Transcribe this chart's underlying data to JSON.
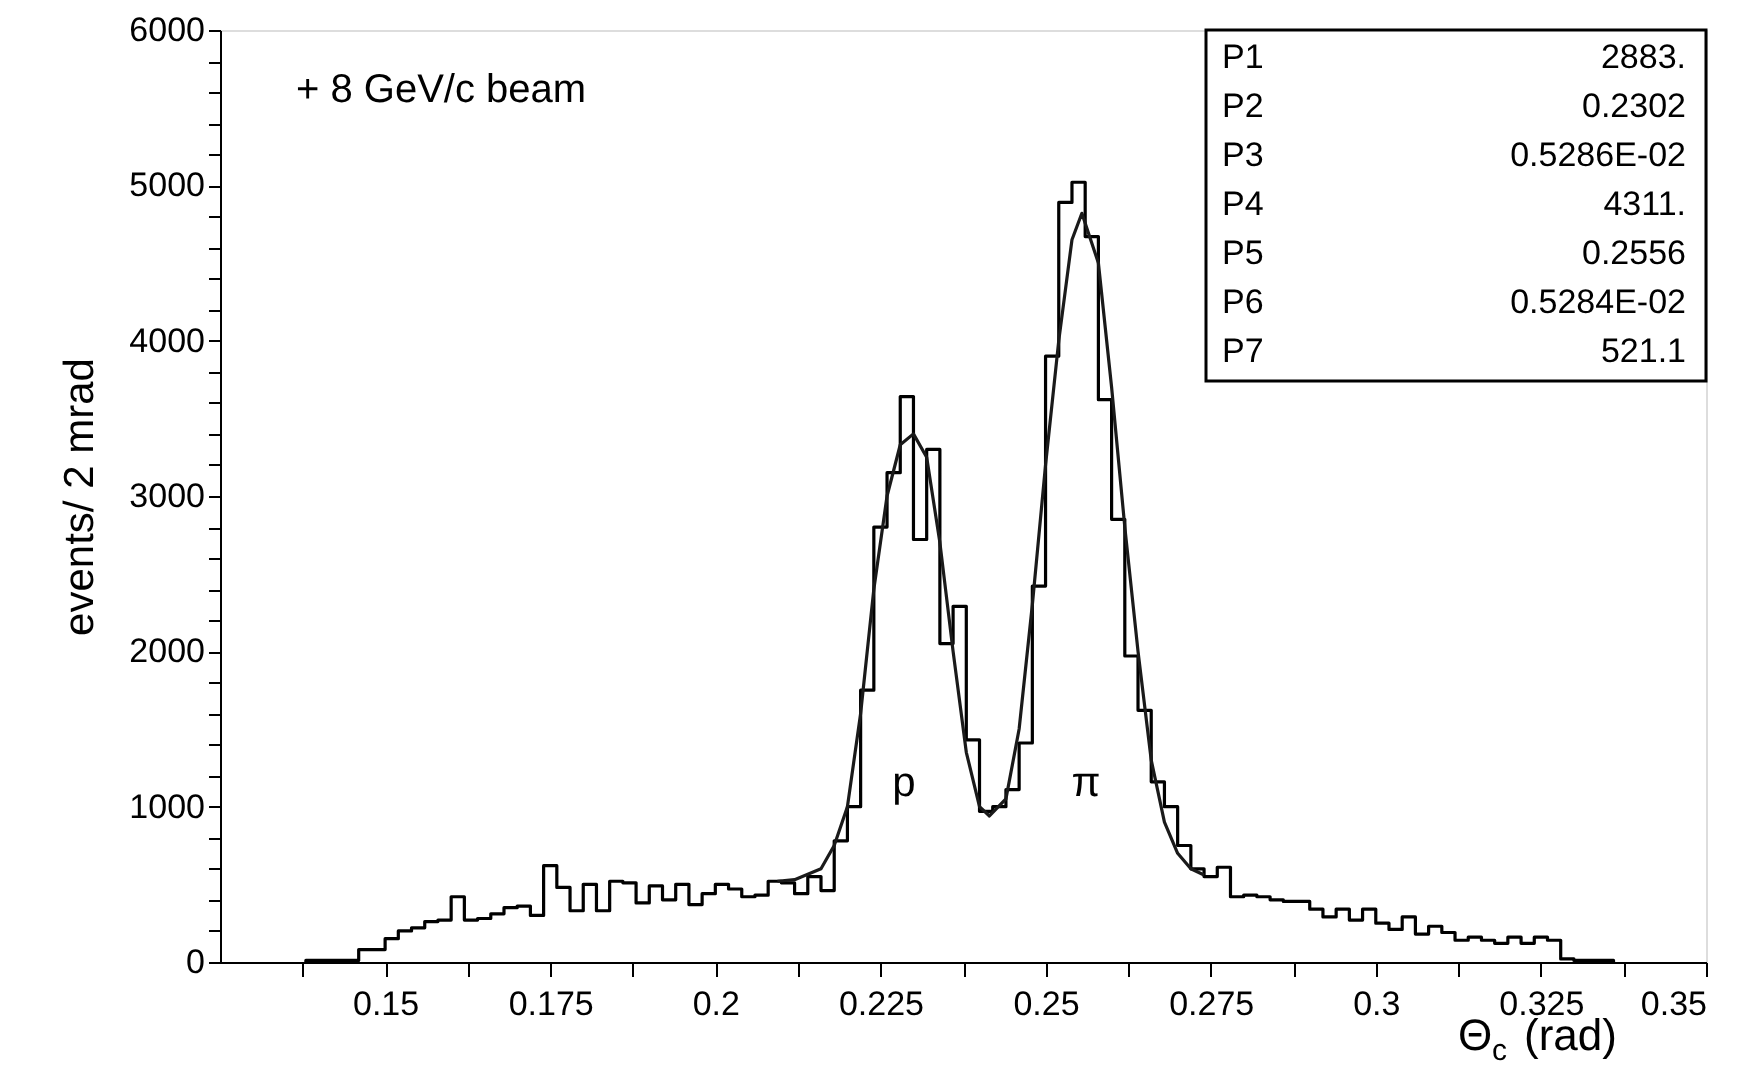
{
  "chart_data": {
    "type": "histogram",
    "xlabel": "Θ$_{c}$ (rad)",
    "ylabel": "events/ 2 mrad",
    "xlim": [
      0.125,
      0.35
    ],
    "ylim": [
      0,
      6000
    ],
    "xticks": [
      {
        "value": 0.1375,
        "label": null
      },
      0.15,
      {
        "value": 0.1625,
        "label": null
      },
      0.175,
      {
        "value": 0.1875,
        "label": null
      },
      0.2,
      {
        "value": 0.2125,
        "label": null
      },
      0.225,
      {
        "value": 0.2375,
        "label": null
      },
      0.25,
      {
        "value": 0.2625,
        "label": null
      },
      0.275,
      {
        "value": 0.2875,
        "label": null
      },
      0.3,
      {
        "value": 0.3125,
        "label": null
      },
      0.325,
      {
        "value": 0.3375,
        "label": null
      },
      0.35
    ],
    "yticks": [
      0,
      {
        "value": 200,
        "label": null
      },
      {
        "value": 400,
        "label": null
      },
      {
        "value": 600,
        "label": null
      },
      {
        "value": 800,
        "label": null
      },
      1000,
      {
        "value": 1200,
        "label": null
      },
      {
        "value": 1400,
        "label": null
      },
      {
        "value": 1600,
        "label": null
      },
      {
        "value": 1800,
        "label": null
      },
      2000,
      {
        "value": 2200,
        "label": null
      },
      {
        "value": 2400,
        "label": null
      },
      {
        "value": 2600,
        "label": null
      },
      {
        "value": 2800,
        "label": null
      },
      3000,
      {
        "value": 3200,
        "label": null
      },
      {
        "value": 3400,
        "label": null
      },
      {
        "value": 3600,
        "label": null
      },
      {
        "value": 3800,
        "label": null
      },
      4000,
      {
        "value": 4200,
        "label": null
      },
      {
        "value": 4400,
        "label": null
      },
      {
        "value": 4600,
        "label": null
      },
      {
        "value": 4800,
        "label": null
      },
      5000,
      {
        "value": 5200,
        "label": null
      },
      {
        "value": 5400,
        "label": null
      },
      {
        "value": 5600,
        "label": null
      },
      {
        "value": 5800,
        "label": null
      },
      6000
    ],
    "grid": false,
    "series": [
      {
        "color": "#000000",
        "bins": [
          0.138,
          0.14,
          0.142,
          0.144,
          0.146,
          0.148,
          0.15,
          0.152,
          0.154,
          0.156,
          0.158,
          0.16,
          0.162,
          0.164,
          0.166,
          0.168,
          0.17,
          0.172,
          0.174,
          0.176,
          0.178,
          0.18,
          0.182,
          0.184,
          0.186,
          0.188,
          0.19,
          0.192,
          0.194,
          0.196,
          0.198,
          0.2,
          0.202,
          0.204,
          0.206,
          0.208,
          0.21,
          0.212,
          0.214,
          0.216,
          0.218,
          0.22,
          0.222,
          0.224,
          0.226,
          0.228,
          0.23,
          0.232,
          0.234,
          0.236,
          0.238,
          0.24,
          0.242,
          0.244,
          0.246,
          0.248,
          0.25,
          0.252,
          0.254,
          0.256,
          0.258,
          0.26,
          0.262,
          0.264,
          0.266,
          0.268,
          0.27,
          0.272,
          0.274,
          0.276,
          0.278,
          0.28,
          0.282,
          0.284,
          0.286,
          0.288,
          0.29,
          0.292,
          0.294,
          0.296,
          0.298,
          0.3,
          0.302,
          0.304,
          0.306,
          0.308,
          0.31,
          0.312,
          0.314,
          0.316,
          0.318,
          0.32,
          0.322,
          0.324,
          0.326,
          0.328,
          0.33,
          0.332,
          0.334,
          0.336
        ],
        "values": [
          10,
          10,
          10,
          10,
          80,
          80,
          150,
          200,
          220,
          260,
          270,
          420,
          270,
          280,
          310,
          350,
          360,
          300,
          620,
          480,
          330,
          500,
          330,
          520,
          510,
          380,
          490,
          400,
          500,
          370,
          440,
          500,
          470,
          420,
          430,
          520,
          510,
          440,
          550,
          460,
          780,
          1000,
          1750,
          2800,
          3150,
          3640,
          2720,
          3300,
          2050,
          2290,
          1430,
          970,
          1000,
          1110,
          1410,
          2420,
          3900,
          4890,
          5020,
          4670,
          3620,
          2850,
          1970,
          1620,
          1160,
          1000,
          750,
          600,
          550,
          610,
          420,
          430,
          420,
          400,
          390,
          390,
          340,
          290,
          340,
          270,
          340,
          250,
          210,
          290,
          180,
          230,
          190,
          140,
          160,
          140,
          120,
          160,
          120,
          160,
          140,
          20,
          10,
          10,
          10
        ]
      },
      {
        "type": "line",
        "color": "#1a1a1a",
        "x": [
          0.2094,
          0.212,
          0.216,
          0.218,
          0.22,
          0.222,
          0.224,
          0.226,
          0.228,
          0.23,
          0.232,
          0.234,
          0.236,
          0.238,
          0.24,
          0.2415,
          0.244,
          0.246,
          0.248,
          0.25,
          0.252,
          0.254,
          0.2555,
          0.258,
          0.26,
          0.262,
          0.264,
          0.266,
          0.268,
          0.27,
          0.272,
          0.274
        ],
        "values": [
          520,
          530,
          600,
          750,
          1000,
          1600,
          2400,
          3000,
          3330,
          3400,
          3250,
          2700,
          2000,
          1350,
          1000,
          940,
          1050,
          1500,
          2300,
          3200,
          4000,
          4650,
          4820,
          4500,
          3700,
          2800,
          2000,
          1300,
          900,
          700,
          600,
          560
        ]
      }
    ],
    "annotations": [
      "+ 8 GeV/c beam",
      "p",
      "π",
      "P1 2883.",
      "P2 0.2302",
      "P3 0.5286E-02",
      "P4 4311.",
      "P5 0.2556",
      "P6 0.5284E-02",
      "P7 521.1"
    ]
  }
}
